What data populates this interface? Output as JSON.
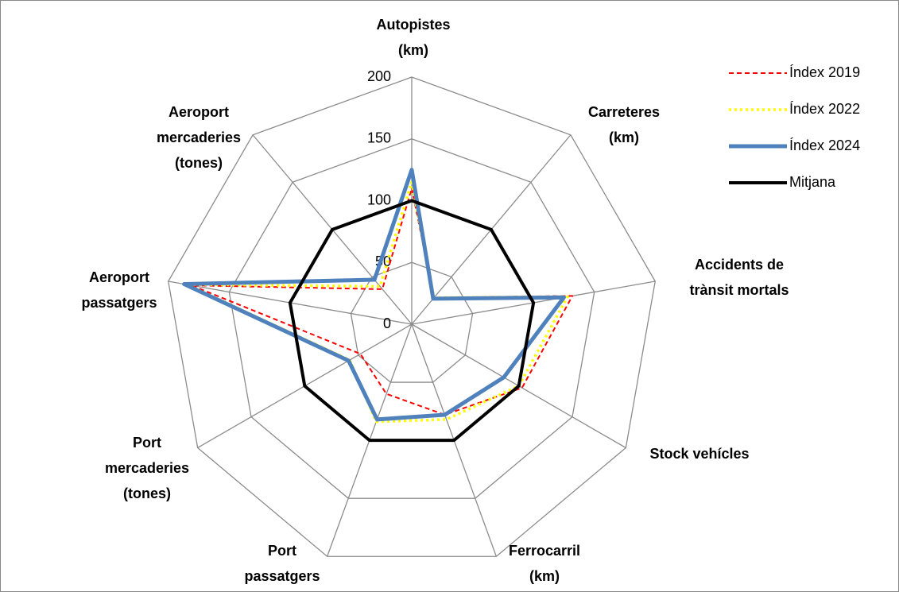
{
  "chart_data": {
    "type": "radar",
    "categories": [
      [
        "Autopistes",
        "(km)"
      ],
      [
        "Carreteres",
        "(km)"
      ],
      [
        "Accidents de",
        "trànsit mortals"
      ],
      [
        "Stock vehícles"
      ],
      [
        "Ferrocarril",
        "(km)"
      ],
      [
        "Port",
        "passatgers"
      ],
      [
        "Port",
        "mercaderies",
        "(tones)"
      ],
      [
        "Aeroport",
        "passatgers"
      ],
      [
        "Aeroport",
        "mercaderies",
        "(tones)"
      ]
    ],
    "series": [
      {
        "name": "Índex 2019",
        "color": "#ff0000",
        "dash": "6 4",
        "width": 2,
        "values": [
          110,
          28,
          132,
          103,
          78,
          60,
          48,
          181,
          37
        ]
      },
      {
        "name": "Índex 2022",
        "color": "#ffff00",
        "dash": "3 4",
        "width": 3.5,
        "values": [
          115,
          28,
          128,
          100,
          82,
          84,
          58,
          185,
          40
        ]
      },
      {
        "name": "Índex 2024",
        "color": "#4f81bd",
        "dash": "none",
        "width": 5,
        "values": [
          125,
          27,
          125,
          86,
          78,
          82,
          59,
          187,
          47
        ]
      },
      {
        "name": "Mitjana",
        "color": "#000000",
        "dash": "none",
        "width": 4,
        "values": [
          100,
          100,
          100,
          100,
          100,
          100,
          100,
          100,
          100
        ]
      }
    ],
    "rlim": [
      0,
      200
    ],
    "rticks": [
      0,
      50,
      100,
      150,
      200
    ],
    "grid": true
  }
}
